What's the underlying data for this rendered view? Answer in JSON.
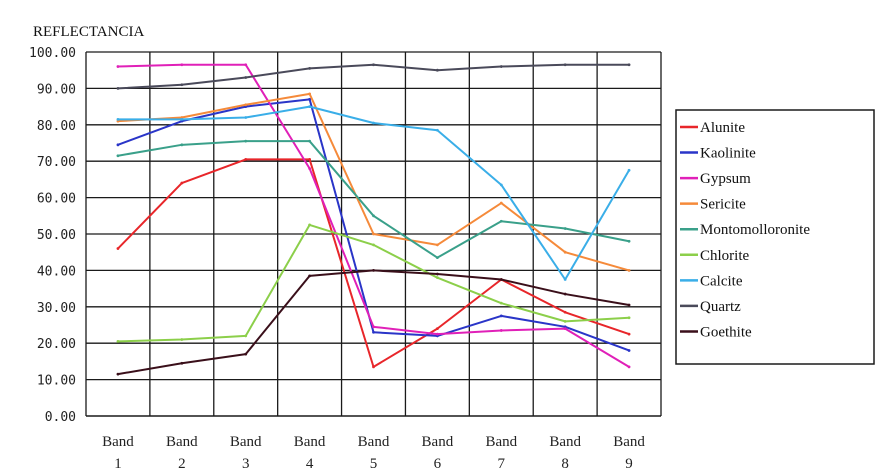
{
  "chart_data": {
    "type": "line",
    "title": "",
    "ylabel": "REFLECTANCIA",
    "xlabel": "",
    "categories": [
      [
        "Band",
        "1"
      ],
      [
        "Band",
        "2"
      ],
      [
        "Band",
        "3"
      ],
      [
        "Band",
        "4"
      ],
      [
        "Band",
        "5"
      ],
      [
        "Band",
        "6"
      ],
      [
        "Band",
        "7"
      ],
      [
        "Band",
        "8"
      ],
      [
        "Band",
        "9"
      ]
    ],
    "ylim": [
      0,
      100
    ],
    "yticks": [
      "0.00",
      "10.00",
      "20.00",
      "30.00",
      "40.00",
      "50.00",
      "60.00",
      "70.00",
      "80.00",
      "90.00",
      "100.00"
    ],
    "grid": true,
    "legend_position": "right",
    "series": [
      {
        "name": "Alunite",
        "color": "#e8262a",
        "values": [
          46,
          64,
          70.5,
          70.5,
          13.5,
          24,
          37.5,
          28.5,
          22.5
        ]
      },
      {
        "name": "Kaolinite",
        "color": "#2a35c8",
        "values": [
          74.5,
          81,
          85,
          87,
          23,
          22,
          27.5,
          24.5,
          18
        ]
      },
      {
        "name": "Gypsum",
        "color": "#e020b8",
        "values": [
          96,
          96.5,
          96.5,
          68,
          24.5,
          22.5,
          23.5,
          24,
          13.5
        ]
      },
      {
        "name": "Sericite",
        "color": "#f58a3a",
        "values": [
          81,
          82,
          85.5,
          88.5,
          50,
          47,
          58.5,
          45,
          40
        ]
      },
      {
        "name": "Montomolloronite",
        "color": "#3aa08a",
        "values": [
          71.5,
          74.5,
          75.5,
          75.5,
          55,
          43.5,
          53.5,
          51.5,
          48
        ]
      },
      {
        "name": "Chlorite",
        "color": "#8ccf4a",
        "values": [
          20.5,
          21,
          22,
          52.5,
          47,
          38,
          31,
          26,
          27
        ]
      },
      {
        "name": "Calcite",
        "color": "#3aaee8",
        "values": [
          81.5,
          81.5,
          82,
          85,
          80.5,
          78.5,
          63.5,
          37.5,
          67.5
        ]
      },
      {
        "name": "Quartz",
        "color": "#4a4a5a",
        "values": [
          90,
          91,
          93,
          95.5,
          96.5,
          95,
          96,
          96.5,
          96.5
        ]
      },
      {
        "name": "Goethite",
        "color": "#3a0f1a",
        "values": [
          11.5,
          14.5,
          17,
          38.5,
          40,
          39,
          37.5,
          33.5,
          30.5
        ]
      }
    ]
  }
}
